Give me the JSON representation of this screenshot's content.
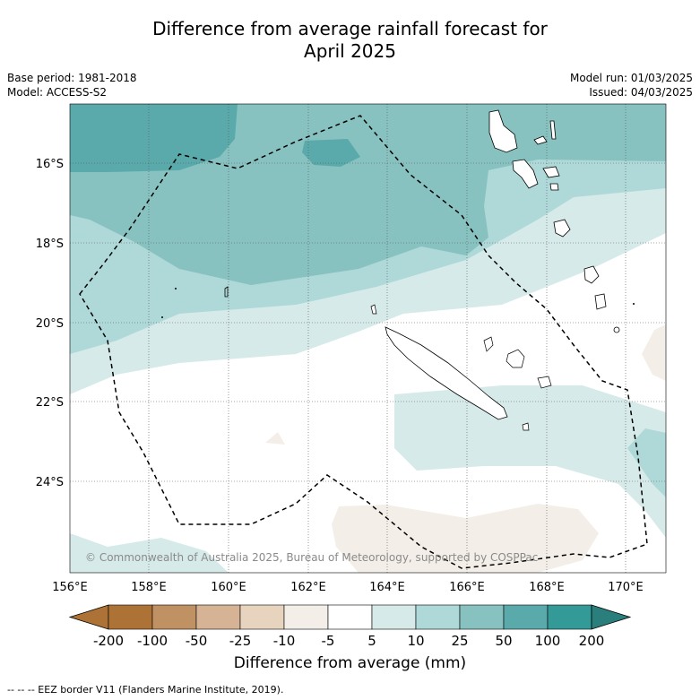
{
  "title_line1": "Difference from average rainfall forecast for",
  "title_line2": "April 2025",
  "base_period": "Base period: 1981-2018",
  "model": "Model: ACCESS-S2",
  "model_run": "Model run: 01/03/2025",
  "issued": "Issued: 04/03/2025",
  "copyright": "© Commonwealth of Australia 2025, Bureau of Meteorology, supported by COSPPac",
  "lon_labels": [
    "156°E",
    "158°E",
    "160°E",
    "162°E",
    "164°E",
    "166°E",
    "168°E",
    "170°E"
  ],
  "lat_labels": [
    "16°S",
    "18°S",
    "20°S",
    "22°S",
    "24°S"
  ],
  "colorbar": {
    "ticks": [
      "-200",
      "-100",
      "-50",
      "-25",
      "-10",
      "-5",
      "5",
      "10",
      "25",
      "50",
      "100",
      "200"
    ],
    "colors": [
      "#ad7336",
      "#c09163",
      "#d6b395",
      "#e8d3bf",
      "#f3efe8",
      "#ffffff",
      "#d6eae9",
      "#afd8d8",
      "#87c2c1",
      "#5baaab",
      "#339a97",
      "#2a7e7c"
    ],
    "label": "Difference from average (mm)"
  },
  "footnote": "--  --  -- EEZ border V11 (Flanders Marine Institute, 2019)."
}
